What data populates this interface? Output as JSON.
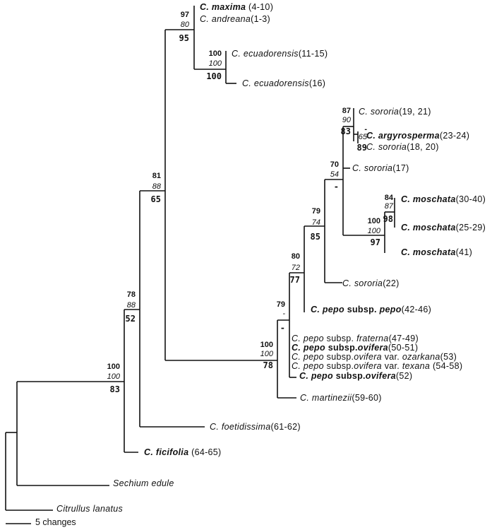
{
  "leaves": [
    {
      "id": "maxima",
      "parts": [
        {
          "t": "C. maxima",
          "s": "bi"
        },
        {
          "t": " (4-10)",
          "s": ""
        }
      ]
    },
    {
      "id": "andreana",
      "parts": [
        {
          "t": "C. andreana",
          "s": "i"
        },
        {
          "t": "(1-3)",
          "s": ""
        }
      ]
    },
    {
      "id": "ecu1",
      "parts": [
        {
          "t": "C. ecuadorensis",
          "s": "i"
        },
        {
          "t": "(11-15)",
          "s": ""
        }
      ]
    },
    {
      "id": "ecu2",
      "parts": [
        {
          "t": "C. ecuadorensis",
          "s": "i"
        },
        {
          "t": "(16)",
          "s": ""
        }
      ]
    },
    {
      "id": "sor1921",
      "parts": [
        {
          "t": "C. sororia",
          "s": "i"
        },
        {
          "t": "(19, 21)",
          "s": ""
        }
      ]
    },
    {
      "id": "argy",
      "parts": [
        {
          "t": "C. argyrosperma",
          "s": "bi"
        },
        {
          "t": "(23-24)",
          "s": ""
        }
      ]
    },
    {
      "id": "sor1820",
      "parts": [
        {
          "t": "C. sororia",
          "s": "i"
        },
        {
          "t": "(18, 20)",
          "s": ""
        }
      ]
    },
    {
      "id": "sor17",
      "parts": [
        {
          "t": "C. sororia",
          "s": "i"
        },
        {
          "t": "(17)",
          "s": ""
        }
      ]
    },
    {
      "id": "mos3040",
      "parts": [
        {
          "t": "C. moschata",
          "s": "bi"
        },
        {
          "t": "(30-40)",
          "s": ""
        }
      ]
    },
    {
      "id": "mos2529",
      "parts": [
        {
          "t": "C. moschata",
          "s": "bi"
        },
        {
          "t": "(25-29)",
          "s": ""
        }
      ]
    },
    {
      "id": "mos41",
      "parts": [
        {
          "t": "C. moschata",
          "s": "bi"
        },
        {
          "t": "(41)",
          "s": ""
        }
      ]
    },
    {
      "id": "sor22",
      "parts": [
        {
          "t": "C. sororia",
          "s": "i"
        },
        {
          "t": "(22)",
          "s": ""
        }
      ]
    },
    {
      "id": "pepo",
      "parts": [
        {
          "t": "C. pepo",
          "s": "bi"
        },
        {
          "t": " subsp. ",
          "s": "b"
        },
        {
          "t": "pepo",
          "s": "bi"
        },
        {
          "t": "(42-46)",
          "s": ""
        }
      ]
    },
    {
      "id": "fraterna",
      "parts": [
        {
          "t": "C. pepo",
          "s": "i"
        },
        {
          "t": " subsp. ",
          "s": ""
        },
        {
          "t": "fraterna",
          "s": "i"
        },
        {
          "t": "(47-49)",
          "s": ""
        }
      ]
    },
    {
      "id": "ovi5051",
      "parts": [
        {
          "t": "C. pepo",
          "s": "bi"
        },
        {
          "t": " subsp.",
          "s": "b"
        },
        {
          "t": "ovifera",
          "s": "bi"
        },
        {
          "t": "(50-51)",
          "s": ""
        }
      ]
    },
    {
      "id": "ozarkana",
      "parts": [
        {
          "t": "C. pepo",
          "s": "i"
        },
        {
          "t": " subsp.",
          "s": ""
        },
        {
          "t": "ovifera",
          "s": "i"
        },
        {
          "t": " var. ",
          "s": ""
        },
        {
          "t": "ozarkana",
          "s": "i"
        },
        {
          "t": "(53)",
          "s": ""
        }
      ]
    },
    {
      "id": "texana",
      "parts": [
        {
          "t": "C. pepo",
          "s": "i"
        },
        {
          "t": " subsp.",
          "s": ""
        },
        {
          "t": "ovifera",
          "s": "i"
        },
        {
          "t": " var. ",
          "s": ""
        },
        {
          "t": "texana",
          "s": "i"
        },
        {
          "t": " (54-58)",
          "s": ""
        }
      ]
    },
    {
      "id": "ovi52",
      "parts": [
        {
          "t": "C. pepo",
          "s": "bi"
        },
        {
          "t": " subsp.",
          "s": "b"
        },
        {
          "t": "ovifera",
          "s": "bi"
        },
        {
          "t": "(52)",
          "s": ""
        }
      ]
    },
    {
      "id": "martinezii",
      "parts": [
        {
          "t": "C. martinezii",
          "s": "i"
        },
        {
          "t": "(59-60)",
          "s": ""
        }
      ]
    },
    {
      "id": "foetid",
      "parts": [
        {
          "t": "C. foetidissima",
          "s": "i"
        },
        {
          "t": "(61-62)",
          "s": ""
        }
      ]
    },
    {
      "id": "ficifolia",
      "parts": [
        {
          "t": "C. ficifolia",
          "s": "bi"
        },
        {
          "t": " (64-65)",
          "s": ""
        }
      ]
    },
    {
      "id": "sechium",
      "parts": [
        {
          "t": "Sechium edule",
          "s": "i"
        }
      ]
    },
    {
      "id": "citrullus",
      "parts": [
        {
          "t": "Citrullus lanatus",
          "s": "i"
        }
      ]
    }
  ],
  "support": [
    {
      "id": "n_maxima",
      "top": "97",
      "mid": "80",
      "bot": "95"
    },
    {
      "id": "n_ecu",
      "top": "100",
      "mid": "100",
      "bot": "100"
    },
    {
      "id": "n_81",
      "top": "81",
      "mid": "88",
      "bot": "65"
    },
    {
      "id": "n_78",
      "top": "78",
      "mid": "88",
      "bot": "52"
    },
    {
      "id": "n_base",
      "top": "100",
      "mid": "100",
      "bot": "83"
    },
    {
      "id": "n_pepo_all",
      "top": "100",
      "mid": "100",
      "bot": "78"
    },
    {
      "id": "n_79a",
      "top": "79",
      "mid": "-",
      "bot": "-"
    },
    {
      "id": "n_80",
      "top": "80",
      "mid": "72",
      "bot": "77"
    },
    {
      "id": "n_79b",
      "top": "79",
      "mid": "74",
      "bot": "85"
    },
    {
      "id": "n_70",
      "top": "70",
      "mid": "54",
      "bot": "-"
    },
    {
      "id": "n_mos",
      "top": "100",
      "mid": "100",
      "bot": "97"
    },
    {
      "id": "n_mos2",
      "top": "84",
      "mid": "87",
      "bot": "98"
    },
    {
      "id": "n_87",
      "top": "87",
      "mid": "90",
      "bot": "83"
    },
    {
      "id": "n_65",
      "top": "-",
      "mid": "65",
      "bot": "89"
    }
  ],
  "scale_bar": {
    "label": "5 changes"
  }
}
